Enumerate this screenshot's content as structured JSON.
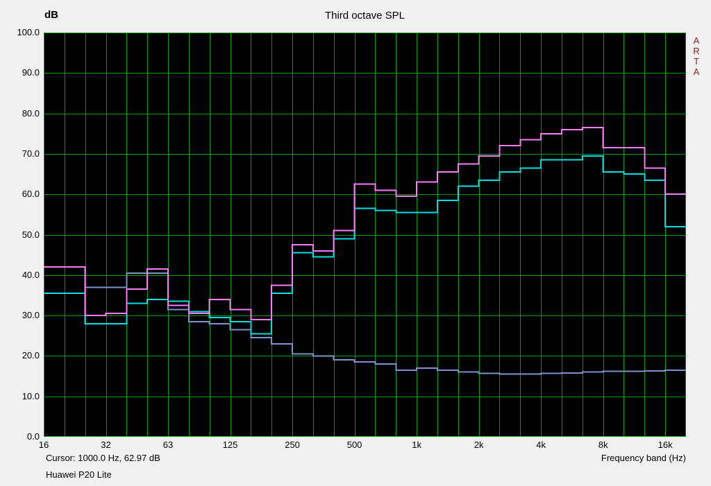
{
  "header": {
    "y_unit_label": "dB",
    "title": "Third octave SPL"
  },
  "side_label": {
    "letters": [
      "A",
      "R",
      "T",
      "A"
    ],
    "color": "#8b2020"
  },
  "status_bar": {
    "cursor_readout": "Cursor:  1000.0 Hz, 62.97 dB",
    "x_axis_label": "Frequency band (Hz)",
    "device_label": "Huawei P20 Lite"
  },
  "chart_data": {
    "type": "line",
    "style": "third-octave-step-spectrum",
    "title": "Third octave SPL",
    "ylabel": "dB",
    "xlabel": "Frequency band (Hz)",
    "ylim": [
      0,
      100
    ],
    "y_tick_labels": [
      "100.0",
      "90.0",
      "80.0",
      "70.0",
      "60.0",
      "50.0",
      "40.0",
      "30.0",
      "20.0",
      "10.0",
      "0.0"
    ],
    "x_tick_labels": [
      "16",
      "32",
      "63",
      "125",
      "250",
      "500",
      "1k",
      "2k",
      "4k",
      "8k",
      "16k"
    ],
    "band_center_frequencies_hz": [
      16,
      20,
      25,
      31.5,
      40,
      50,
      63,
      80,
      100,
      125,
      160,
      200,
      250,
      315,
      400,
      500,
      630,
      800,
      1000,
      1250,
      1600,
      2000,
      2500,
      3150,
      4000,
      5000,
      6300,
      8000,
      10000,
      12500,
      16000
    ],
    "cursor": {
      "frequency_hz": 1000.0,
      "level_db": 62.97
    },
    "grid": {
      "color": "#00a000",
      "background": "#000000"
    },
    "series": [
      {
        "name": "blue-trace",
        "color": "#7a95cc",
        "values": [
          42,
          42,
          37,
          37,
          40.5,
          40.5,
          31.5,
          28.5,
          28,
          26.5,
          24.5,
          23,
          20.5,
          20,
          19,
          18.5,
          18,
          16.5,
          17,
          16.5,
          16,
          15.7,
          15.5,
          15.5,
          15.7,
          15.8,
          16,
          16.2,
          16.2,
          16.3,
          16.5
        ]
      },
      {
        "name": "cyan-trace",
        "color": "#00e0e0",
        "values": [
          35.5,
          35.5,
          28,
          28,
          33,
          34,
          33.5,
          31,
          29.5,
          28.5,
          25.5,
          35.5,
          45.5,
          44.5,
          49,
          56.5,
          56,
          55.5,
          55.5,
          58.5,
          62,
          63.5,
          65.5,
          66.5,
          68.5,
          68.5,
          69.5,
          65.5,
          65,
          63.5,
          52
        ]
      },
      {
        "name": "pink-trace",
        "color": "#fa7cfa",
        "values": [
          42,
          42,
          30,
          30.5,
          36.5,
          41.5,
          32.5,
          30.5,
          34,
          31.5,
          29,
          37.5,
          47.5,
          46,
          51,
          62.5,
          61,
          59.5,
          63,
          65.5,
          67.5,
          69.5,
          72,
          73.5,
          75,
          76,
          76.5,
          71.5,
          71.5,
          66.5,
          60
        ]
      }
    ]
  }
}
